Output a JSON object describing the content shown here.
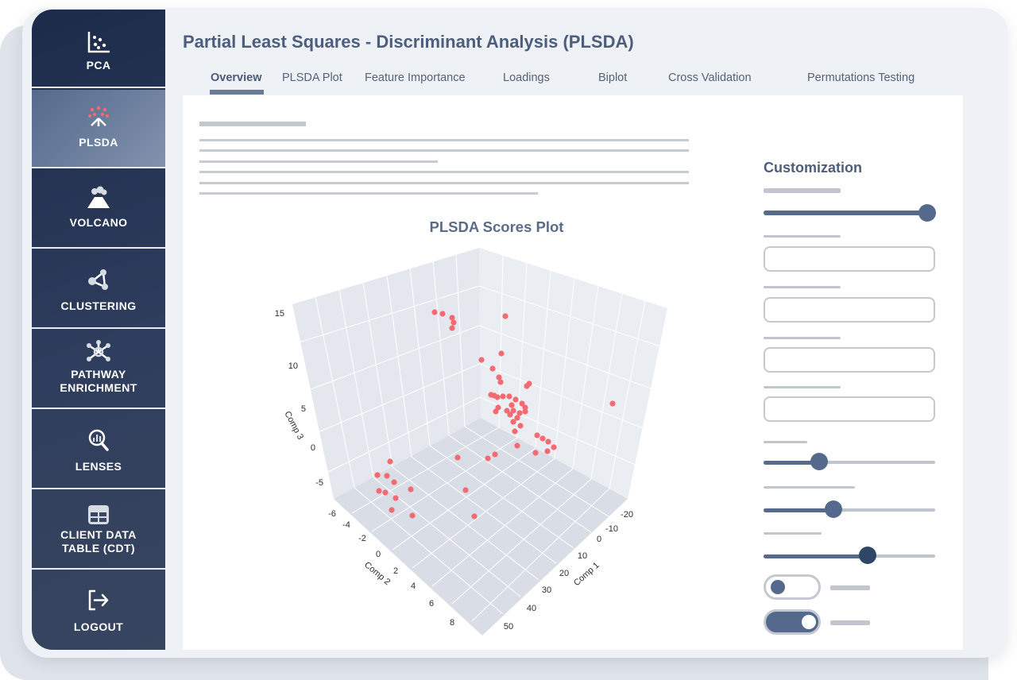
{
  "app": {
    "page_title": "Partial Least Squares - Discriminant Analysis (PLSDA)"
  },
  "sidebar": {
    "items": [
      {
        "label": "PCA",
        "icon": "scatter-plot-icon",
        "active": false
      },
      {
        "label": "PLSDA",
        "icon": "plsda-icon",
        "active": true
      },
      {
        "label": "VOLCANO",
        "icon": "volcano-icon",
        "active": false
      },
      {
        "label": "CLUSTERING",
        "icon": "clustering-icon",
        "active": false
      },
      {
        "label": "PATHWAY\nENRICHMENT",
        "icon": "pathway-icon",
        "active": false
      },
      {
        "label": "LENSES",
        "icon": "lens-icon",
        "active": false
      },
      {
        "label": "CLIENT DATA\nTABLE (CDT)",
        "icon": "table-icon",
        "active": false
      },
      {
        "label": "LOGOUT",
        "icon": "logout-icon",
        "active": false
      }
    ]
  },
  "tabs": [
    {
      "label": "Overview",
      "active": true
    },
    {
      "label": "PLSDA Plot",
      "active": false
    },
    {
      "label": "Feature Importance",
      "active": false
    },
    {
      "label": "Loadings",
      "active": false
    },
    {
      "label": "Biplot",
      "active": false
    },
    {
      "label": "Cross Validation",
      "active": false
    },
    {
      "label": "Permutations Testing",
      "active": false
    }
  ],
  "customization": {
    "title": "Customization",
    "sliders": [
      1.0,
      0.33,
      0.4,
      0.6
    ],
    "toggles": [
      false,
      true
    ]
  },
  "colors": {
    "accent": "#55698c",
    "point": "#f36b72",
    "sidebar": "#2f3e5e"
  },
  "chart_data": {
    "type": "scatter",
    "title": "PLSDA Scores Plot",
    "xlabel": "Comp 1",
    "ylabel": "Comp 2",
    "zlabel": "Comp 3",
    "x_ticks": [
      "-20",
      "-10",
      "0",
      "10",
      "20",
      "30",
      "40",
      "50"
    ],
    "y_ticks": [
      "-6",
      "-4",
      "-2",
      "0",
      "2",
      "4",
      "6",
      "8"
    ],
    "z_ticks": [
      "15",
      "10",
      "5",
      "0",
      "-5"
    ],
    "note": "3D scatter; approximate screen-space projection of points",
    "points": [
      [
        547,
        393
      ],
      [
        557,
        395
      ],
      [
        569,
        400
      ],
      [
        571,
        406
      ],
      [
        569,
        413
      ],
      [
        636,
        398
      ],
      [
        631,
        445
      ],
      [
        606,
        453
      ],
      [
        620,
        464
      ],
      [
        628,
        475
      ],
      [
        630,
        481
      ],
      [
        666,
        483
      ],
      [
        663,
        486
      ],
      [
        618,
        497
      ],
      [
        626,
        500
      ],
      [
        633,
        499
      ],
      [
        641,
        499
      ],
      [
        649,
        503
      ],
      [
        644,
        510
      ],
      [
        657,
        508
      ],
      [
        661,
        513
      ],
      [
        654,
        520
      ],
      [
        646,
        517
      ],
      [
        642,
        522
      ],
      [
        651,
        526
      ],
      [
        646,
        531
      ],
      [
        638,
        517
      ],
      [
        627,
        513
      ],
      [
        624,
        518
      ],
      [
        622,
        498
      ],
      [
        655,
        536
      ],
      [
        648,
        543
      ],
      [
        676,
        548
      ],
      [
        683,
        552
      ],
      [
        690,
        556
      ],
      [
        697,
        563
      ],
      [
        689,
        568
      ],
      [
        674,
        570
      ],
      [
        651,
        561
      ],
      [
        771,
        508
      ],
      [
        623,
        572
      ],
      [
        614,
        577
      ],
      [
        576,
        576
      ],
      [
        586,
        617
      ],
      [
        597,
        650
      ],
      [
        519,
        649
      ],
      [
        493,
        642
      ],
      [
        498,
        627
      ],
      [
        517,
        616
      ],
      [
        485,
        620
      ],
      [
        477,
        618
      ],
      [
        496,
        607
      ],
      [
        487,
        599
      ],
      [
        475,
        598
      ],
      [
        491,
        581
      ],
      [
        661,
        518
      ]
    ]
  }
}
